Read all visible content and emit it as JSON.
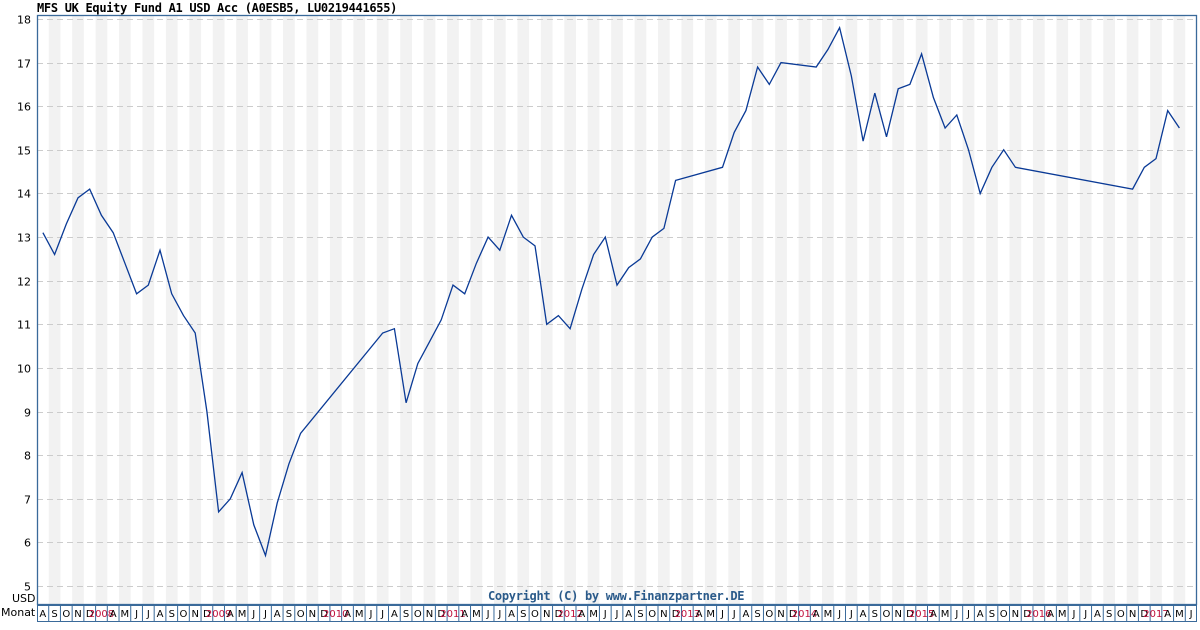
{
  "header": {
    "title": "MFS UK Equity Fund A1 USD Acc (A0ESB5, LU0219441655)"
  },
  "footer": {
    "copyright": "Copyright (C) by www.Finanzpartner.DE",
    "axis_row_label": "Monat",
    "unit_label": "USD"
  },
  "colors": {
    "line": "#0a3a96",
    "frame": "#3a6a9a",
    "year_label": "#c0103c",
    "grid": "#cccccc",
    "stripe": "#f2f2f2"
  },
  "chart_data": {
    "type": "line",
    "title": "MFS UK Equity Fund A1 USD Acc (A0ESB5, LU0219441655)",
    "xlabel": "Monat",
    "ylabel": "USD",
    "ylim": [
      5,
      18
    ],
    "yticks": [
      5,
      6,
      7,
      8,
      9,
      10,
      11,
      12,
      13,
      14,
      15,
      16,
      17,
      18
    ],
    "grid": true,
    "legend": null,
    "x_month_labels": [
      "A",
      "S",
      "O",
      "N",
      "D",
      "2008",
      "A",
      "M",
      "J",
      "J",
      "A",
      "S",
      "O",
      "N",
      "D",
      "2009",
      "A",
      "M",
      "J",
      "J",
      "A",
      "S",
      "O",
      "N",
      "D",
      "2010",
      "A",
      "M",
      "J",
      "J",
      "A",
      "S",
      "O",
      "N",
      "D",
      "2011",
      "A",
      "M",
      "J",
      "J",
      "A",
      "S",
      "O",
      "N",
      "D",
      "2012",
      "A",
      "M",
      "J",
      "J",
      "A",
      "S",
      "O",
      "N",
      "D",
      "2013",
      "A",
      "M",
      "J",
      "J",
      "A",
      "S",
      "O",
      "N",
      "D",
      "2014",
      "A",
      "M",
      "J",
      "J",
      "A",
      "S",
      "O",
      "N",
      "D",
      "2015",
      "A",
      "M",
      "J",
      "J",
      "A",
      "S",
      "O",
      "N",
      "D",
      "2016",
      "A",
      "M",
      "J",
      "J",
      "A",
      "S",
      "O",
      "N",
      "D",
      "2017",
      "A",
      "M",
      "J"
    ],
    "x_start": "2007-08",
    "x_end": "2017-06",
    "series": [
      {
        "name": "MFS UK Equity Fund A1 USD Acc",
        "unit": "USD",
        "points": [
          [
            "2007-08",
            13.1
          ],
          [
            "2007-09",
            12.6
          ],
          [
            "2007-10",
            13.3
          ],
          [
            "2007-11",
            13.9
          ],
          [
            "2007-12",
            14.1
          ],
          [
            "2008-01",
            13.5
          ],
          [
            "2008-02",
            13.1
          ],
          [
            "2008-03",
            12.4
          ],
          [
            "2008-04",
            11.7
          ],
          [
            "2008-05",
            11.9
          ],
          [
            "2008-06",
            12.7
          ],
          [
            "2008-07",
            11.7
          ],
          [
            "2008-08",
            11.2
          ],
          [
            "2008-09",
            10.8
          ],
          [
            "2008-10",
            9.0
          ],
          [
            "2008-11",
            6.7
          ],
          [
            "2008-12",
            7.0
          ],
          [
            "2009-01",
            7.6
          ],
          [
            "2009-02",
            6.4
          ],
          [
            "2009-03",
            5.7
          ],
          [
            "2009-04",
            6.9
          ],
          [
            "2009-05",
            7.8
          ],
          [
            "2009-06",
            8.5
          ],
          [
            "2010-01",
            10.8
          ],
          [
            "2010-02",
            10.9
          ],
          [
            "2010-03",
            9.2
          ],
          [
            "2010-04",
            10.1
          ],
          [
            "2010-05",
            10.6
          ],
          [
            "2010-06",
            11.1
          ],
          [
            "2010-07",
            11.9
          ],
          [
            "2010-08",
            11.7
          ],
          [
            "2010-09",
            12.4
          ],
          [
            "2010-10",
            13.0
          ],
          [
            "2010-11",
            12.7
          ],
          [
            "2010-12",
            13.5
          ],
          [
            "2011-01",
            13.0
          ],
          [
            "2011-02",
            12.8
          ],
          [
            "2011-03",
            11.0
          ],
          [
            "2011-04",
            11.2
          ],
          [
            "2011-05",
            10.9
          ],
          [
            "2011-06",
            11.8
          ],
          [
            "2011-07",
            12.6
          ],
          [
            "2011-08",
            13.0
          ],
          [
            "2011-09",
            11.9
          ],
          [
            "2011-10",
            12.3
          ],
          [
            "2011-11",
            12.5
          ],
          [
            "2011-12",
            13.0
          ],
          [
            "2012-01",
            13.2
          ],
          [
            "2012-02",
            14.3
          ],
          [
            "2012-06",
            14.6
          ],
          [
            "2012-07",
            15.4
          ],
          [
            "2012-08",
            15.9
          ],
          [
            "2012-09",
            16.9
          ],
          [
            "2012-10",
            16.5
          ],
          [
            "2012-11",
            17.0
          ],
          [
            "2013-02",
            16.9
          ],
          [
            "2013-03",
            17.3
          ],
          [
            "2013-04",
            17.8
          ],
          [
            "2013-05",
            16.7
          ],
          [
            "2013-06",
            15.2
          ],
          [
            "2013-07",
            16.3
          ],
          [
            "2013-08",
            15.3
          ],
          [
            "2013-09",
            16.4
          ],
          [
            "2013-10",
            16.5
          ],
          [
            "2013-11",
            17.2
          ],
          [
            "2013-12",
            16.2
          ],
          [
            "2014-01",
            15.5
          ],
          [
            "2014-02",
            15.8
          ],
          [
            "2014-03",
            15.0
          ],
          [
            "2014-04",
            14.0
          ],
          [
            "2014-05",
            14.6
          ],
          [
            "2014-06",
            15.0
          ],
          [
            "2014-07",
            14.6
          ],
          [
            "2015-05",
            14.1
          ],
          [
            "2015-06",
            14.6
          ],
          [
            "2015-07",
            14.8
          ],
          [
            "2015-08",
            15.9
          ],
          [
            "2015-09",
            15.5
          ]
        ]
      }
    ]
  }
}
